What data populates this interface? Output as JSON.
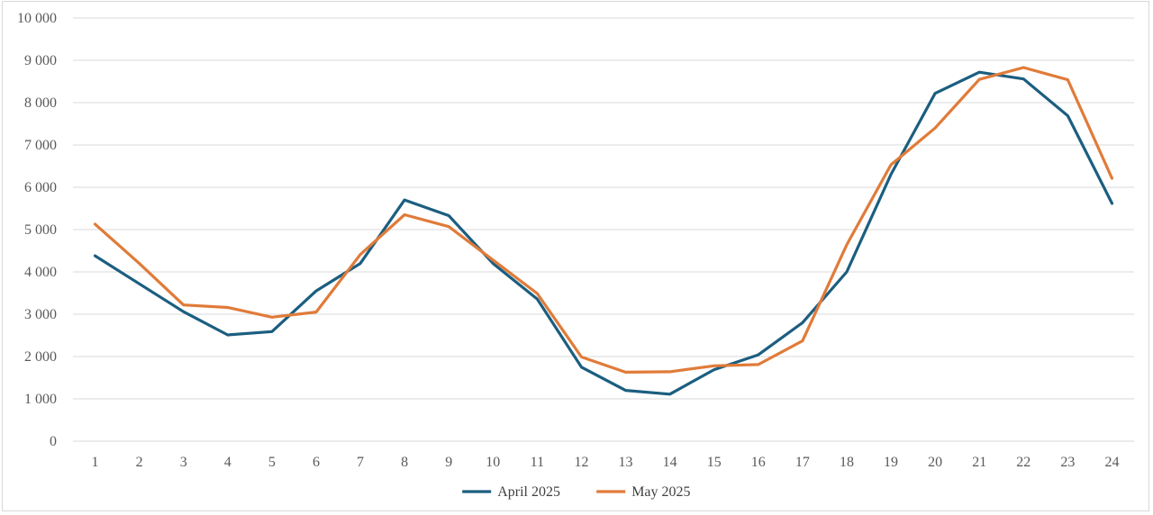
{
  "chart_data": {
    "type": "line",
    "title": "",
    "xlabel": "",
    "ylabel": "",
    "x": [
      1,
      2,
      3,
      4,
      5,
      6,
      7,
      8,
      9,
      10,
      11,
      12,
      13,
      14,
      15,
      16,
      17,
      18,
      19,
      20,
      21,
      22,
      23,
      24
    ],
    "x_tick_labels": [
      "1",
      "2",
      "3",
      "4",
      "5",
      "6",
      "7",
      "8",
      "9",
      "10",
      "11",
      "12",
      "13",
      "14",
      "15",
      "16",
      "17",
      "18",
      "19",
      "20",
      "21",
      "22",
      "23",
      "24"
    ],
    "ylim": [
      0,
      10000
    ],
    "y_ticks": [
      0,
      1000,
      2000,
      3000,
      4000,
      5000,
      6000,
      7000,
      8000,
      9000,
      10000
    ],
    "y_tick_labels": [
      "0",
      "1 000",
      "2 000",
      "3 000",
      "4 000",
      "5 000",
      "6 000",
      "7 000",
      "8 000",
      "9 000",
      "10 000"
    ],
    "grid": true,
    "legend_position": "bottom",
    "series": [
      {
        "name": "April 2025",
        "color": "#1b5e80",
        "values": [
          4380,
          3720,
          3060,
          2510,
          2590,
          3550,
          4200,
          5700,
          5330,
          4200,
          3360,
          1750,
          1200,
          1110,
          1690,
          2040,
          2800,
          4000,
          6300,
          8220,
          8720,
          8560,
          7690,
          5620
        ]
      },
      {
        "name": "May 2025",
        "color": "#e07b39",
        "values": [
          5130,
          4200,
          3220,
          3160,
          2930,
          3050,
          4410,
          5350,
          5070,
          4280,
          3490,
          1990,
          1630,
          1640,
          1780,
          1810,
          2370,
          4640,
          6530,
          7400,
          8550,
          8830,
          8540,
          6210
        ]
      }
    ]
  }
}
